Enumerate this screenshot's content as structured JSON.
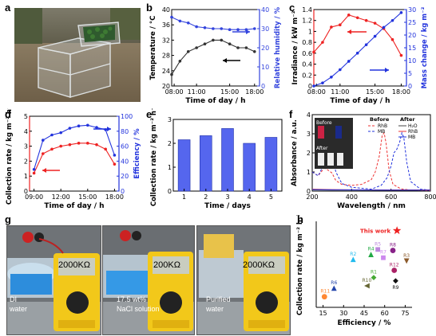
{
  "panels": {
    "a": {
      "label": "a"
    },
    "b": {
      "label": "b"
    },
    "c": {
      "label": "c"
    },
    "d": {
      "label": "d"
    },
    "e": {
      "label": "e"
    },
    "f": {
      "label": "f"
    },
    "g": {
      "label": "g",
      "meter_readings": [
        "2000KΩ",
        "200KΩ",
        "2000KΩ"
      ],
      "captions": [
        [
          "DI",
          "water"
        ],
        [
          "17.5 wt%",
          "NaCl solution"
        ],
        [
          "Purified",
          "water"
        ]
      ]
    },
    "h": {
      "label": "h"
    }
  },
  "chart_data": [
    {
      "id": "b",
      "type": "line",
      "xlabel": "Time of day / h",
      "ylabel": "Temperature / °C",
      "y2label": "Relative humidity / %",
      "xticks": [
        "08:00",
        "11:00",
        "15:00",
        "18:00"
      ],
      "xlim": [
        8,
        18.6
      ],
      "ylim": [
        20,
        40
      ],
      "yticks": [
        20,
        24,
        28,
        32,
        36,
        40
      ],
      "y2lim": [
        0,
        40
      ],
      "y2ticks": [
        0,
        10,
        20,
        30,
        40
      ],
      "series": [
        {
          "axis": "left",
          "color": "#333333",
          "x": [
            8,
            9,
            10,
            11,
            12,
            13,
            14,
            15,
            16,
            17,
            18
          ],
          "y": [
            23,
            26.5,
            29,
            30,
            31,
            32,
            32,
            31,
            30,
            30,
            29
          ]
        },
        {
          "axis": "right",
          "color": "#3344dd",
          "x": [
            8,
            9,
            10,
            11,
            12,
            13,
            14,
            15,
            16,
            17,
            18
          ],
          "y": [
            36,
            34,
            33,
            31,
            30.5,
            30,
            30,
            29.5,
            29.5,
            29.5,
            30
          ]
        }
      ]
    },
    {
      "id": "c",
      "type": "line",
      "xlabel": "Time of day / h",
      "ylabel": "Irradiance / kW m⁻²",
      "y2label": "Mass change / kg m⁻²",
      "xticks": [
        "08:00",
        "11:00",
        "15:00",
        "18:00"
      ],
      "xlim": [
        8,
        18.6
      ],
      "ylim": [
        0,
        1.4
      ],
      "yticks": [
        0,
        0.2,
        0.4,
        0.6,
        0.8,
        1.0,
        1.2,
        1.4
      ],
      "y2lim": [
        0,
        30
      ],
      "y2ticks": [
        0,
        5,
        10,
        15,
        20,
        25,
        30
      ],
      "series": [
        {
          "axis": "left",
          "color": "#ee2222",
          "x": [
            8,
            9,
            10,
            11,
            12,
            13,
            14,
            15,
            16,
            17,
            18
          ],
          "y": [
            0.62,
            0.8,
            1.08,
            1.12,
            1.3,
            1.25,
            1.2,
            1.15,
            1.05,
            0.85,
            0.56
          ]
        },
        {
          "axis": "right",
          "color": "#2233dd",
          "x": [
            8,
            9,
            10,
            11,
            12,
            13,
            14,
            15,
            16,
            17,
            18
          ],
          "y": [
            0,
            1.2,
            3.5,
            6.4,
            9.7,
            12.9,
            16.2,
            19.5,
            23,
            25.7,
            28.8
          ]
        }
      ]
    },
    {
      "id": "d",
      "type": "line",
      "xlabel": "Time of day / h",
      "ylabel": "Collection rate / kg m⁻² h⁻¹",
      "y2label": "Efficiency / %",
      "xticks": [
        "09:00",
        "12:00",
        "15:00",
        "18:00"
      ],
      "xlim": [
        8.5,
        18.5
      ],
      "ylim": [
        0,
        5
      ],
      "yticks": [
        0,
        1,
        2,
        3,
        4,
        5
      ],
      "y2lim": [
        0,
        100
      ],
      "y2ticks": [
        0,
        20,
        40,
        60,
        80,
        100
      ],
      "series": [
        {
          "axis": "left",
          "color": "#ee2222",
          "x": [
            9,
            10,
            11,
            12,
            13,
            14,
            15,
            16,
            17,
            18
          ],
          "y": [
            1.2,
            2.5,
            2.8,
            3.0,
            3.1,
            3.2,
            3.2,
            3.1,
            2.8,
            1.8
          ]
        },
        {
          "axis": "right",
          "color": "#2233dd",
          "x": [
            9,
            10,
            11,
            12,
            13,
            14,
            15,
            16,
            17,
            18
          ],
          "y": [
            29,
            68,
            75,
            78,
            84,
            87,
            88,
            85,
            82,
            48
          ]
        }
      ]
    },
    {
      "id": "e",
      "type": "bar",
      "xlabel": "Time / days",
      "ylabel": "Collection rate / kg m⁻² h⁻¹",
      "categories": [
        "1",
        "2",
        "3",
        "4",
        "5"
      ],
      "values": [
        2.15,
        2.32,
        2.62,
        2.0,
        2.25
      ],
      "ylim": [
        0,
        3
      ],
      "yticks": [
        0,
        1,
        2,
        3
      ],
      "color": "#5566ee"
    },
    {
      "id": "f",
      "type": "line",
      "xlabel": "Wavelength / nm",
      "ylabel": "Absorbance / a.u.",
      "xlim": [
        200,
        800
      ],
      "xticks": [
        200,
        400,
        600,
        800
      ],
      "ylim": [
        0,
        4
      ],
      "yticks": [
        0,
        1,
        2,
        3,
        4
      ],
      "legend_headers": [
        "Before",
        "After"
      ],
      "legend": [
        {
          "name": "RhB",
          "color": "#ee3333",
          "dash": "3,2",
          "column": "before"
        },
        {
          "name": "MB",
          "color": "#2233dd",
          "dash": "3,2",
          "column": "before"
        },
        {
          "name": "H₂O",
          "color": "#444444",
          "dash": "",
          "column": "after"
        },
        {
          "name": "RhB",
          "color": "#ee3333",
          "dash": "",
          "column": "after"
        },
        {
          "name": "MB",
          "color": "#2233dd",
          "dash": "",
          "column": "after"
        }
      ],
      "inset_labels": [
        "Before",
        "After"
      ],
      "series": [
        {
          "name": "RhB before",
          "color": "#ee3333",
          "dash": "3,2",
          "x": [
            200,
            230,
            260,
            280,
            300,
            320,
            350,
            400,
            450,
            500,
            520,
            540,
            555,
            565,
            575,
            590,
            610,
            650,
            700,
            800
          ],
          "y": [
            1.0,
            0.8,
            1.2,
            1.1,
            0.95,
            0.55,
            0.35,
            0.3,
            0.35,
            0.6,
            1.0,
            1.8,
            2.9,
            3.05,
            2.5,
            1.1,
            0.35,
            0.12,
            0.05,
            0.02
          ]
        },
        {
          "name": "MB before",
          "color": "#2233dd",
          "dash": "3,2",
          "x": [
            200,
            230,
            260,
            280,
            292,
            300,
            320,
            350,
            400,
            500,
            550,
            580,
            600,
            615,
            630,
            645,
            655,
            665,
            680,
            700,
            750,
            800
          ],
          "y": [
            1.0,
            0.8,
            1.4,
            1.8,
            2.15,
            1.9,
            1.0,
            0.4,
            0.2,
            0.1,
            0.3,
            0.7,
            1.3,
            2.0,
            2.2,
            2.6,
            3.05,
            2.8,
            1.5,
            0.5,
            0.1,
            0.05
          ]
        },
        {
          "name": "H2O after",
          "color": "#444444",
          "dash": "",
          "x": [
            200,
            300,
            400,
            600,
            800
          ],
          "y": [
            0.06,
            0.05,
            0.05,
            0.04,
            0.04
          ]
        },
        {
          "name": "RhB after",
          "color": "#ee3333",
          "dash": "",
          "x": [
            200,
            300,
            400,
            600,
            800
          ],
          "y": [
            0.1,
            0.08,
            0.07,
            0.06,
            0.06
          ]
        },
        {
          "name": "MB after",
          "color": "#2233dd",
          "dash": "",
          "x": [
            200,
            300,
            400,
            600,
            800
          ],
          "y": [
            0.08,
            0.07,
            0.06,
            0.05,
            0.05
          ]
        }
      ]
    },
    {
      "id": "h",
      "type": "scatter",
      "xlabel": "Efficiency / %",
      "ylabel": "Collection rate / kg m⁻² h⁻¹",
      "xlim": [
        10,
        80
      ],
      "xticks": [
        15,
        30,
        45,
        60,
        75
      ],
      "ylim": [
        0,
        2.6
      ],
      "points": [
        {
          "label": "This work",
          "x": 69,
          "y": 2.32,
          "color": "#ee2222",
          "shape": "star"
        },
        {
          "label": "R1",
          "x": 52,
          "y": 0.9,
          "color": "#44aa33",
          "shape": "diamond"
        },
        {
          "label": "R2",
          "x": 37,
          "y": 1.45,
          "color": "#22bbee",
          "shape": "triangle"
        },
        {
          "label": "R3",
          "x": 76,
          "y": 1.4,
          "color": "#8b5a2b",
          "shape": "triangle-down"
        },
        {
          "label": "R4",
          "x": 50,
          "y": 1.6,
          "color": "#22aa44",
          "shape": "triangle"
        },
        {
          "label": "R5",
          "x": 55,
          "y": 1.75,
          "color": "#bb88dd",
          "shape": "square"
        },
        {
          "label": "R6",
          "x": 23,
          "y": 0.58,
          "color": "#2244aa",
          "shape": "triangle"
        },
        {
          "label": "R7",
          "x": 59,
          "y": 1.5,
          "color": "#cc88ee",
          "shape": "square"
        },
        {
          "label": "R8",
          "x": 66,
          "y": 1.72,
          "color": "#882288",
          "shape": "circle"
        },
        {
          "label": "R9",
          "x": 68,
          "y": 0.8,
          "color": "#111111",
          "shape": "diamond"
        },
        {
          "label": "R10",
          "x": 47,
          "y": 0.65,
          "color": "#666633",
          "shape": "triangle-left"
        },
        {
          "label": "R11",
          "x": 16,
          "y": 0.32,
          "color": "#ff8833",
          "shape": "circle"
        },
        {
          "label": "R12",
          "x": 67,
          "y": 1.12,
          "color": "#aa2266",
          "shape": "circle"
        }
      ]
    }
  ]
}
